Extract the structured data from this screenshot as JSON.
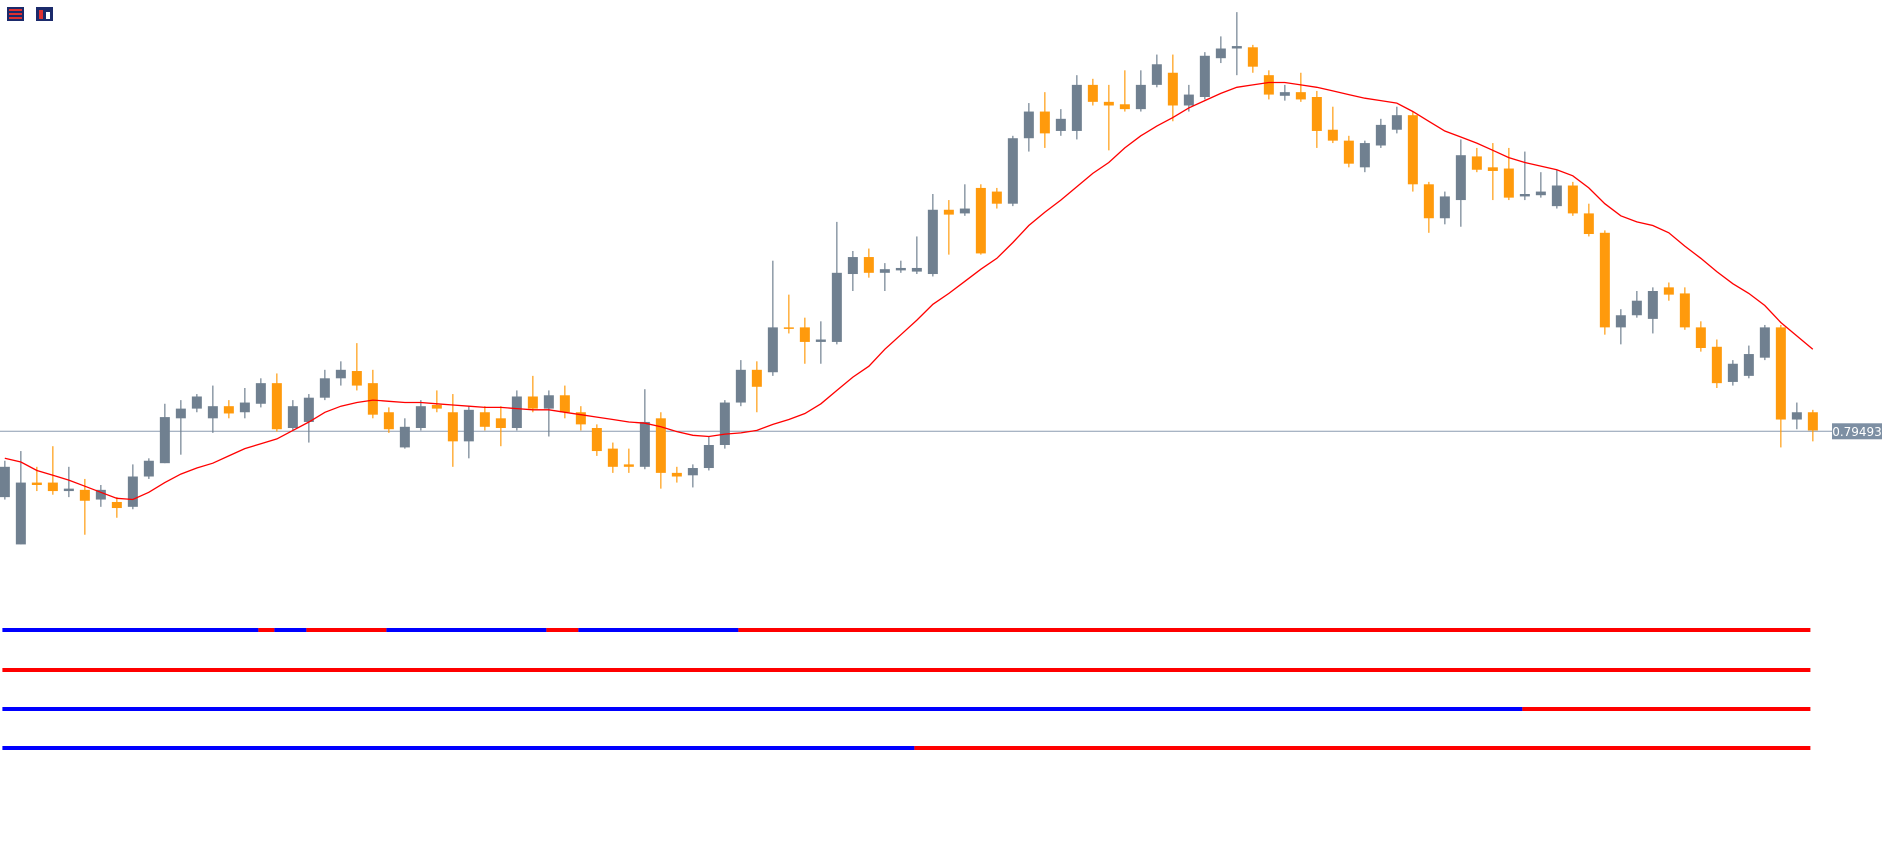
{
  "chart_data": {
    "type": "candlestick",
    "up_color": "#708090",
    "down_color": "#ff9a0c",
    "ylim": [
      0.7825,
      0.8305
    ],
    "open": [
      0.7895,
      0.7856,
      0.7907,
      0.7907,
      0.79,
      0.7901,
      0.7893,
      0.7891,
      0.7887,
      0.7912,
      0.7923,
      0.796,
      0.7968,
      0.796,
      0.797,
      0.7965,
      0.7972,
      0.7989,
      0.7952,
      0.7957,
      0.7977,
      0.7993,
      0.7999,
      0.7989,
      0.7965,
      0.7936,
      0.7952,
      0.7971,
      0.7965,
      0.7941,
      0.7965,
      0.796,
      0.7952,
      0.7978,
      0.7968,
      0.7979,
      0.7965,
      0.7952,
      0.7935,
      0.7922,
      0.792,
      0.796,
      0.7915,
      0.7913,
      0.7919,
      0.7938,
      0.7973,
      0.8,
      0.7998,
      0.8035,
      0.8035,
      0.8023,
      0.8023,
      0.8079,
      0.8093,
      0.808,
      0.8082,
      0.8081,
      0.8079,
      0.8132,
      0.8129,
      0.815,
      0.8147,
      0.8137,
      0.8191,
      0.8213,
      0.8197,
      0.8197,
      0.8235,
      0.8221,
      0.8219,
      0.8215,
      0.8235,
      0.8245,
      0.8218,
      0.8225,
      0.8257,
      0.8265,
      0.8266,
      0.8243,
      0.8226,
      0.8229,
      0.8225,
      0.8198,
      0.8189,
      0.8167,
      0.8185,
      0.8198,
      0.821,
      0.8153,
      0.8125,
      0.814,
      0.8176,
      0.8167,
      0.8166,
      0.8143,
      0.8144,
      0.8135,
      0.8152,
      0.8129,
      0.8113,
      0.8035,
      0.8045,
      0.8042,
      0.8068,
      0.8063,
      0.8035,
      0.8019,
      0.799,
      0.7995,
      0.801,
      0.8035,
      0.7959,
      0.7965
    ],
    "high": [
      0.7925,
      0.7933,
      0.792,
      0.7937,
      0.792,
      0.791,
      0.7905,
      0.7895,
      0.7922,
      0.7927,
      0.7972,
      0.7975,
      0.798,
      0.7987,
      0.7975,
      0.7985,
      0.7993,
      0.7997,
      0.7975,
      0.798,
      0.8,
      0.8007,
      0.8022,
      0.8,
      0.7969,
      0.796,
      0.7975,
      0.7983,
      0.798,
      0.797,
      0.797,
      0.797,
      0.7983,
      0.7995,
      0.7983,
      0.7987,
      0.797,
      0.7955,
      0.794,
      0.7935,
      0.7984,
      0.7965,
      0.792,
      0.7922,
      0.7945,
      0.7975,
      0.8008,
      0.8007,
      0.809,
      0.8062,
      0.8043,
      0.804,
      0.8122,
      0.8098,
      0.81,
      0.8088,
      0.809,
      0.811,
      0.8145,
      0.814,
      0.8153,
      0.8153,
      0.815,
      0.8193,
      0.822,
      0.8229,
      0.8215,
      0.8243,
      0.824,
      0.8235,
      0.8247,
      0.8247,
      0.826,
      0.826,
      0.8235,
      0.8262,
      0.8275,
      0.8295,
      0.8268,
      0.8247,
      0.8235,
      0.8245,
      0.823,
      0.8217,
      0.8193,
      0.8189,
      0.8207,
      0.8217,
      0.8213,
      0.8155,
      0.8147,
      0.819,
      0.8183,
      0.8187,
      0.8183,
      0.818,
      0.8163,
      0.8165,
      0.8155,
      0.8137,
      0.8115,
      0.805,
      0.8065,
      0.8068,
      0.8072,
      0.8068,
      0.804,
      0.8025,
      0.8008,
      0.802,
      0.8037,
      0.8037,
      0.7973,
      0.7967
    ],
    "low": [
      0.7893,
      0.7856,
      0.79,
      0.7897,
      0.7895,
      0.7864,
      0.7887,
      0.7878,
      0.7885,
      0.791,
      0.7923,
      0.793,
      0.7965,
      0.7948,
      0.796,
      0.796,
      0.7969,
      0.7949,
      0.795,
      0.794,
      0.7975,
      0.7987,
      0.7983,
      0.796,
      0.7948,
      0.7935,
      0.795,
      0.7965,
      0.792,
      0.7927,
      0.795,
      0.7937,
      0.795,
      0.7965,
      0.7945,
      0.796,
      0.795,
      0.7929,
      0.7915,
      0.7915,
      0.7918,
      0.7902,
      0.7907,
      0.7903,
      0.7917,
      0.7935,
      0.797,
      0.7965,
      0.7995,
      0.803,
      0.8005,
      0.8005,
      0.8021,
      0.8065,
      0.8076,
      0.8065,
      0.808,
      0.8079,
      0.8077,
      0.8095,
      0.8127,
      0.8095,
      0.8133,
      0.8135,
      0.818,
      0.8183,
      0.8193,
      0.819,
      0.8218,
      0.8181,
      0.8213,
      0.8213,
      0.8233,
      0.8205,
      0.8213,
      0.8223,
      0.8253,
      0.8243,
      0.8245,
      0.8223,
      0.8222,
      0.8221,
      0.8183,
      0.8187,
      0.8167,
      0.8163,
      0.8183,
      0.8195,
      0.8147,
      0.8113,
      0.812,
      0.8118,
      0.8163,
      0.814,
      0.814,
      0.814,
      0.8142,
      0.8133,
      0.8127,
      0.811,
      0.8029,
      0.8021,
      0.8043,
      0.803,
      0.8057,
      0.8033,
      0.8015,
      0.7985,
      0.7987,
      0.7993,
      0.8008,
      0.7936,
      0.7951,
      0.7941
    ],
    "close": [
      0.792,
      0.7907,
      0.7905,
      0.79,
      0.7902,
      0.7892,
      0.7901,
      0.7886,
      0.7912,
      0.7925,
      0.7961,
      0.7968,
      0.7978,
      0.797,
      0.7964,
      0.7973,
      0.7989,
      0.7951,
      0.797,
      0.7977,
      0.7993,
      0.8,
      0.7987,
      0.7963,
      0.7951,
      0.7953,
      0.797,
      0.7968,
      0.7941,
      0.7967,
      0.7953,
      0.7952,
      0.7978,
      0.7968,
      0.7979,
      0.7965,
      0.7955,
      0.7933,
      0.792,
      0.792,
      0.7957,
      0.7915,
      0.7912,
      0.7919,
      0.7938,
      0.7973,
      0.8,
      0.7986,
      0.8035,
      0.8034,
      0.8023,
      0.8025,
      0.808,
      0.8093,
      0.808,
      0.8083,
      0.8084,
      0.8084,
      0.8132,
      0.8128,
      0.8133,
      0.8096,
      0.8137,
      0.8191,
      0.8213,
      0.8195,
      0.8207,
      0.8235,
      0.8221,
      0.8218,
      0.8215,
      0.8235,
      0.8252,
      0.8218,
      0.8227,
      0.8259,
      0.8265,
      0.8267,
      0.825,
      0.8227,
      0.8229,
      0.8223,
      0.8197,
      0.8189,
      0.817,
      0.8187,
      0.8202,
      0.821,
      0.8153,
      0.8125,
      0.8143,
      0.8177,
      0.8165,
      0.8164,
      0.8142,
      0.8145,
      0.8147,
      0.8152,
      0.8129,
      0.8112,
      0.8035,
      0.8045,
      0.8057,
      0.8065,
      0.8062,
      0.8035,
      0.8018,
      0.7989,
      0.8005,
      0.8013,
      0.8035,
      0.7959,
      0.7965,
      0.795
    ],
    "ma": {
      "color": "#ff0000",
      "values": [
        0.7927,
        0.7924,
        0.7917,
        0.7913,
        0.7909,
        0.7904,
        0.7899,
        0.7894,
        0.7893,
        0.7899,
        0.7907,
        0.7914,
        0.7919,
        0.7923,
        0.7929,
        0.7935,
        0.7939,
        0.7943,
        0.795,
        0.7957,
        0.7965,
        0.797,
        0.7973,
        0.7975,
        0.7974,
        0.7973,
        0.7973,
        0.7972,
        0.7971,
        0.797,
        0.7969,
        0.7969,
        0.7968,
        0.7967,
        0.7967,
        0.7965,
        0.7963,
        0.7961,
        0.7959,
        0.7957,
        0.7956,
        0.7953,
        0.7949,
        0.7946,
        0.7945,
        0.7947,
        0.7948,
        0.795,
        0.7955,
        0.7959,
        0.7964,
        0.7972,
        0.7983,
        0.7994,
        0.8003,
        0.8017,
        0.8029,
        0.8041,
        0.8054,
        0.8063,
        0.8073,
        0.8083,
        0.8092,
        0.8105,
        0.8119,
        0.813,
        0.814,
        0.8151,
        0.8162,
        0.8171,
        0.8183,
        0.8193,
        0.8201,
        0.8208,
        0.8216,
        0.8222,
        0.8228,
        0.8233,
        0.8235,
        0.8237,
        0.8237,
        0.8235,
        0.8233,
        0.823,
        0.8227,
        0.8224,
        0.8222,
        0.822,
        0.8213,
        0.8205,
        0.8197,
        0.8192,
        0.8187,
        0.8181,
        0.8175,
        0.8171,
        0.8168,
        0.8165,
        0.816,
        0.815,
        0.8137,
        0.8127,
        0.8122,
        0.8119,
        0.8113,
        0.8102,
        0.8092,
        0.8081,
        0.8071,
        0.8063,
        0.8053,
        0.8039,
        0.8028,
        0.8017
      ]
    },
    "last_price": 0.79493,
    "price_line_color": "#8c9cb0",
    "strength_rows": [
      {
        "segments": [
          {
            "color": "#0000ff",
            "from": 0,
            "to": 16
          },
          {
            "color": "#ff0000",
            "from": 16,
            "to": 17
          },
          {
            "color": "#0000ff",
            "from": 17,
            "to": 19
          },
          {
            "color": "#ff0000",
            "from": 19,
            "to": 24
          },
          {
            "color": "#0000ff",
            "from": 24,
            "to": 34
          },
          {
            "color": "#ff0000",
            "from": 34,
            "to": 36
          },
          {
            "color": "#0000ff",
            "from": 36,
            "to": 46
          },
          {
            "color": "#ff0000",
            "from": 46,
            "to": 113
          }
        ]
      },
      {
        "segments": [
          {
            "color": "#ff0000",
            "from": 0,
            "to": 113
          }
        ]
      },
      {
        "segments": [
          {
            "color": "#0000ff",
            "from": 0,
            "to": 95
          },
          {
            "color": "#ff0000",
            "from": 95,
            "to": 113
          }
        ]
      },
      {
        "segments": [
          {
            "color": "#0000ff",
            "from": 0,
            "to": 57
          },
          {
            "color": "#ff0000",
            "from": 57,
            "to": 113
          }
        ]
      }
    ]
  }
}
